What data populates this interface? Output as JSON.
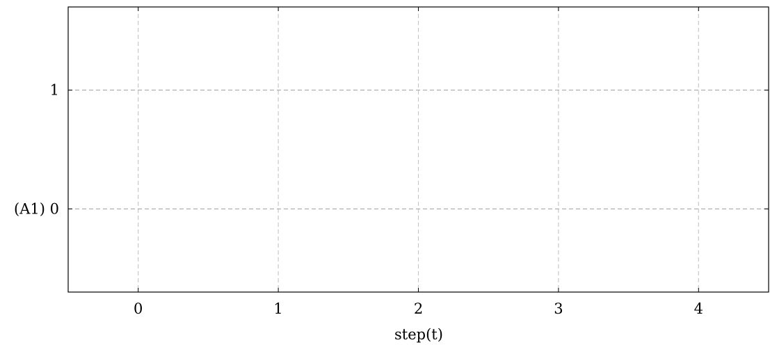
{
  "chart_data": {
    "type": "line",
    "title": "",
    "xlabel": "step(t)",
    "ylabel": "",
    "x_ticks": [
      0,
      1,
      2,
      3,
      4
    ],
    "x_tick_labels": [
      "0",
      "1",
      "2",
      "3",
      "4"
    ],
    "y_ticks": [
      0,
      1
    ],
    "y_tick_labels": [
      "(A1) 0",
      "1"
    ],
    "xlim": [
      -0.5,
      4.5
    ],
    "ylim": [
      -0.7,
      1.7
    ],
    "grid": true,
    "series": []
  }
}
